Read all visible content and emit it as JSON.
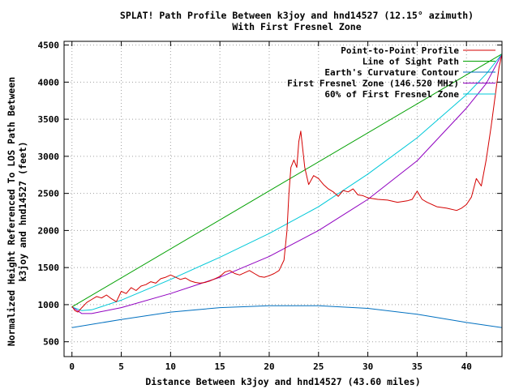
{
  "chart_data": {
    "type": "line",
    "title": "SPLAT! Path Profile Between k3joy and hnd14527 (12.15° azimuth)",
    "subtitle": "With First Fresnel Zone",
    "xlabel": "Distance Between k3joy and hnd14527 (43.60 miles)",
    "ylabel_line1": "Normalized Height Referenced To LOS Path Between",
    "ylabel_line2": "k3joy and hnd14527 (feet)",
    "xlim": [
      -0.8,
      43.6
    ],
    "ylim": [
      300,
      4550
    ],
    "xticks": [
      0,
      5,
      10,
      15,
      20,
      25,
      30,
      35,
      40
    ],
    "yticks": [
      500,
      1000,
      1500,
      2000,
      2500,
      3000,
      3500,
      4000,
      4500
    ],
    "grid": true,
    "legend_position": "top-right",
    "series": [
      {
        "name": "Point-to-Point Profile",
        "color": "#d40000",
        "points": [
          [
            0,
            980
          ],
          [
            0.3,
            920
          ],
          [
            0.6,
            900
          ],
          [
            1.0,
            960
          ],
          [
            1.5,
            1030
          ],
          [
            2.0,
            1070
          ],
          [
            2.5,
            1110
          ],
          [
            3.0,
            1090
          ],
          [
            3.5,
            1130
          ],
          [
            4.0,
            1080
          ],
          [
            4.5,
            1040
          ],
          [
            5.0,
            1180
          ],
          [
            5.5,
            1150
          ],
          [
            6.0,
            1230
          ],
          [
            6.5,
            1190
          ],
          [
            7.0,
            1250
          ],
          [
            7.5,
            1270
          ],
          [
            8.0,
            1310
          ],
          [
            8.5,
            1290
          ],
          [
            9.0,
            1350
          ],
          [
            9.5,
            1370
          ],
          [
            10.0,
            1400
          ],
          [
            10.5,
            1370
          ],
          [
            11.0,
            1340
          ],
          [
            11.5,
            1360
          ],
          [
            12.0,
            1320
          ],
          [
            12.5,
            1300
          ],
          [
            13.0,
            1290
          ],
          [
            13.5,
            1300
          ],
          [
            14.0,
            1320
          ],
          [
            14.5,
            1350
          ],
          [
            15.0,
            1380
          ],
          [
            15.5,
            1440
          ],
          [
            16.0,
            1460
          ],
          [
            16.5,
            1420
          ],
          [
            17.0,
            1400
          ],
          [
            17.5,
            1430
          ],
          [
            18.0,
            1460
          ],
          [
            18.5,
            1420
          ],
          [
            19.0,
            1380
          ],
          [
            19.5,
            1370
          ],
          [
            20.0,
            1390
          ],
          [
            20.5,
            1420
          ],
          [
            21.0,
            1460
          ],
          [
            21.5,
            1600
          ],
          [
            21.8,
            2000
          ],
          [
            22.0,
            2500
          ],
          [
            22.2,
            2850
          ],
          [
            22.5,
            2950
          ],
          [
            22.8,
            2850
          ],
          [
            23.0,
            3200
          ],
          [
            23.2,
            3340
          ],
          [
            23.4,
            3100
          ],
          [
            23.6,
            2850
          ],
          [
            24.0,
            2620
          ],
          [
            24.5,
            2740
          ],
          [
            25.0,
            2700
          ],
          [
            25.5,
            2620
          ],
          [
            26.0,
            2560
          ],
          [
            26.5,
            2520
          ],
          [
            27.0,
            2460
          ],
          [
            27.5,
            2540
          ],
          [
            28.0,
            2520
          ],
          [
            28.5,
            2560
          ],
          [
            29.0,
            2480
          ],
          [
            29.5,
            2470
          ],
          [
            30.0,
            2440
          ],
          [
            31.0,
            2420
          ],
          [
            32.0,
            2410
          ],
          [
            33.0,
            2380
          ],
          [
            34.0,
            2400
          ],
          [
            34.5,
            2420
          ],
          [
            35.0,
            2530
          ],
          [
            35.5,
            2420
          ],
          [
            36.0,
            2380
          ],
          [
            37.0,
            2320
          ],
          [
            38.0,
            2300
          ],
          [
            39.0,
            2270
          ],
          [
            39.5,
            2300
          ],
          [
            40.0,
            2350
          ],
          [
            40.5,
            2450
          ],
          [
            41.0,
            2700
          ],
          [
            41.5,
            2600
          ],
          [
            42.0,
            2950
          ],
          [
            42.5,
            3400
          ],
          [
            43.0,
            3900
          ],
          [
            43.3,
            4200
          ],
          [
            43.6,
            4380
          ]
        ]
      },
      {
        "name": "Line of Sight Path",
        "color": "#00a000",
        "points": [
          [
            0,
            970
          ],
          [
            43.6,
            4380
          ]
        ]
      },
      {
        "name": "Earth's Curvature Contour",
        "color": "#0070c0",
        "points": [
          [
            0,
            690
          ],
          [
            5,
            800
          ],
          [
            10,
            900
          ],
          [
            15,
            960
          ],
          [
            20,
            985
          ],
          [
            25,
            985
          ],
          [
            30,
            950
          ],
          [
            35,
            870
          ],
          [
            40,
            760
          ],
          [
            43.6,
            690
          ]
        ]
      },
      {
        "name": "First Fresnel Zone (146.520 MHz)",
        "color": "#9000c0",
        "points": [
          [
            0,
            970
          ],
          [
            1,
            880
          ],
          [
            2,
            880
          ],
          [
            5,
            960
          ],
          [
            10,
            1150
          ],
          [
            15,
            1370
          ],
          [
            20,
            1650
          ],
          [
            25,
            2000
          ],
          [
            30,
            2420
          ],
          [
            35,
            2940
          ],
          [
            40,
            3650
          ],
          [
            42,
            3980
          ],
          [
            43.6,
            4380
          ]
        ]
      },
      {
        "name": "60% of First Fresnel Zone",
        "color": "#00c8d8",
        "points": [
          [
            0,
            970
          ],
          [
            1,
            920
          ],
          [
            2,
            930
          ],
          [
            5,
            1060
          ],
          [
            10,
            1340
          ],
          [
            15,
            1640
          ],
          [
            20,
            1960
          ],
          [
            25,
            2320
          ],
          [
            30,
            2760
          ],
          [
            35,
            3250
          ],
          [
            40,
            3830
          ],
          [
            42,
            4110
          ],
          [
            43.6,
            4380
          ]
        ]
      }
    ]
  }
}
